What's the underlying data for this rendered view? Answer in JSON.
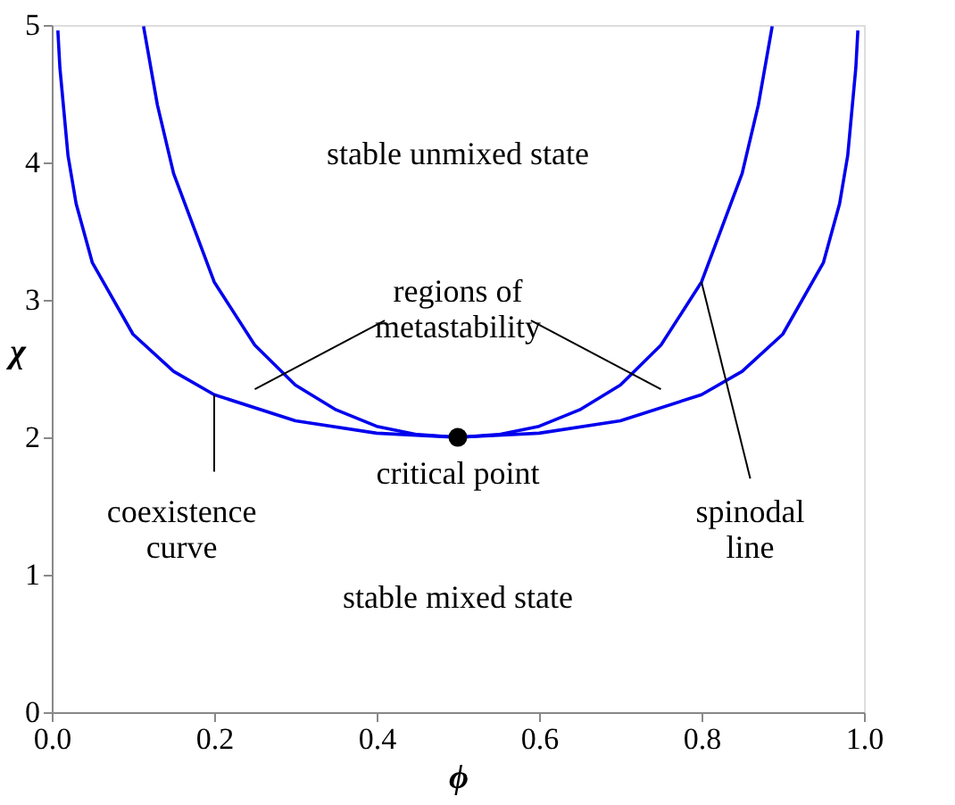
{
  "chart_data": {
    "type": "line",
    "xlabel": "ϕ",
    "ylabel": "χ",
    "xlim": [
      0,
      1
    ],
    "ylim": [
      0,
      5
    ],
    "xticks": [
      {
        "value": 0,
        "label": "0.0"
      },
      {
        "value": 0.2,
        "label": "0.2"
      },
      {
        "value": 0.4,
        "label": "0.4"
      },
      {
        "value": 0.6,
        "label": "0.6"
      },
      {
        "value": 0.8,
        "label": "0.8"
      },
      {
        "value": 1,
        "label": "1.0"
      }
    ],
    "yticks": [
      0,
      1,
      2,
      3,
      4,
      5
    ],
    "line_style": "solid",
    "series": [
      {
        "color": "#0000ee",
        "x": [
          0.0075,
          0.01,
          0.02,
          0.03,
          0.05,
          0.1,
          0.15,
          0.2,
          0.3,
          0.4,
          0.5,
          0.6,
          0.7,
          0.8,
          0.85,
          0.9,
          0.95,
          0.97,
          0.98,
          0.99,
          0.9925
        ],
        "values": [
          4.96,
          4.69,
          4.05,
          3.7,
          3.27,
          2.75,
          2.48,
          2.31,
          2.12,
          2.03,
          2.0,
          2.03,
          2.12,
          2.31,
          2.48,
          2.75,
          3.27,
          3.7,
          4.05,
          4.69,
          4.96
        ]
      },
      {
        "color": "#0000ee",
        "x": [
          0.113,
          0.13,
          0.15,
          0.2,
          0.25,
          0.3,
          0.35,
          0.4,
          0.45,
          0.5,
          0.55,
          0.6,
          0.65,
          0.7,
          0.75,
          0.8,
          0.85,
          0.87,
          0.887
        ],
        "values": [
          4.99,
          4.42,
          3.92,
          3.13,
          2.67,
          2.38,
          2.2,
          2.08,
          2.02,
          2.0,
          2.02,
          2.08,
          2.2,
          2.38,
          2.67,
          3.13,
          3.92,
          4.42,
          4.99
        ]
      },
      {
        "type": "scatter",
        "marker": "circle",
        "color": "#000000",
        "x": [
          0.5
        ],
        "values": [
          2.0
        ]
      }
    ],
    "annotations": [
      "stable unmixed state",
      "regions of\nmetastability",
      "critical point",
      {
        "text": "coexistence\ncurve",
        "x": 0.2,
        "y": 2.31
      },
      {
        "text": "spinodal\nline",
        "x": 0.8,
        "y": 3.13
      },
      "stable mixed state"
    ]
  }
}
